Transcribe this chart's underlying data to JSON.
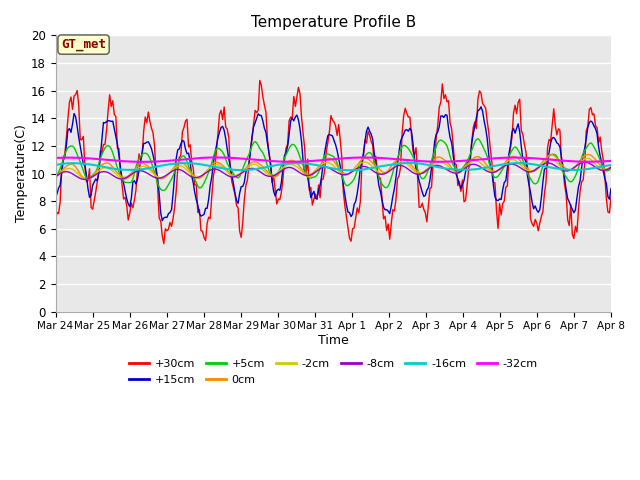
{
  "title": "Temperature Profile B",
  "xlabel": "Time",
  "ylabel": "Temperature(C)",
  "ylim": [
    0,
    20
  ],
  "plot_bg": "#e8e8e8",
  "fig_bg": "#ffffff",
  "grid_color": "#ffffff",
  "annotation_text": "GT_met",
  "annotation_bg": "#ffffcc",
  "annotation_border": "#8B0000",
  "series": [
    {
      "label": "+30cm",
      "color": "#ff0000",
      "lw": 1.0
    },
    {
      "label": "+15cm",
      "color": "#0000cc",
      "lw": 1.0
    },
    {
      "label": "+5cm",
      "color": "#00cc00",
      "lw": 1.0
    },
    {
      "label": "0cm",
      "color": "#ff8800",
      "lw": 1.0
    },
    {
      "label": "-2cm",
      "color": "#cccc00",
      "lw": 1.0
    },
    {
      "label": "-8cm",
      "color": "#9900cc",
      "lw": 1.0
    },
    {
      "label": "-16cm",
      "color": "#00cccc",
      "lw": 1.5
    },
    {
      "label": "-32cm",
      "color": "#ff00ff",
      "lw": 1.5
    }
  ],
  "xtick_labels": [
    "Mar 24",
    "Mar 25",
    "Mar 26",
    "Mar 27",
    "Mar 28",
    "Mar 29",
    "Mar 30",
    "Mar 31",
    "Apr 1",
    "Apr 2",
    "Apr 3",
    "Apr 4",
    "Apr 5",
    "Apr 6",
    "Apr 7",
    "Apr 8"
  ],
  "n_points": 360
}
